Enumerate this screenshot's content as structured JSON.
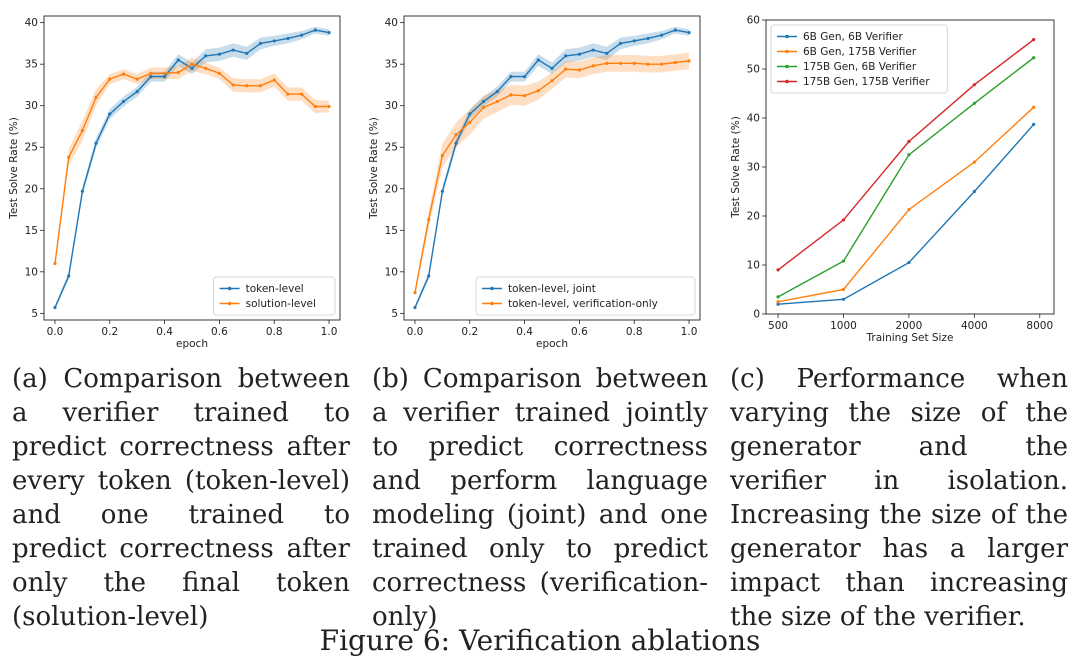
{
  "figure": {
    "caption": "Figure 6: Verification ablations",
    "panels": [
      {
        "caption": "(a) Comparison between a verifier trained to predict correctness after every token (token-level) and one trained to predict correctness after only the final token (solution-level)"
      },
      {
        "caption": "(b) Comparison between a verifier trained jointly to predict correctness and perform language modeling (joint) and one trained only to predict correctness (verification-only)"
      },
      {
        "caption": "(c) Performance when varying the size of the generator and the verifier in isolation. Increasing the size of the generator has a larger impact than increasing the size of the verifier."
      }
    ]
  },
  "colors": {
    "blue": "#1f77b4",
    "orange": "#ff7f0e",
    "green": "#2ca02c",
    "red": "#d62728"
  },
  "chart_data": [
    {
      "type": "line",
      "xlabel": "epoch",
      "ylabel": "Test Solve Rate (%)",
      "xlim": [
        -0.04,
        1.04
      ],
      "ylim": [
        4.2,
        40.8
      ],
      "xticks": [
        0.0,
        0.2,
        0.4,
        0.6,
        0.8,
        1.0
      ],
      "xtick_labels": [
        "0.0",
        "0.2",
        "0.4",
        "0.6",
        "0.8",
        "1.0"
      ],
      "yticks": [
        5,
        10,
        15,
        20,
        25,
        30,
        35,
        40
      ],
      "ytick_labels": [
        "5",
        "10",
        "15",
        "20",
        "25",
        "30",
        "35",
        "40"
      ],
      "legend_position": "lower-right",
      "x": [
        0.0,
        0.05,
        0.1,
        0.15,
        0.2,
        0.25,
        0.3,
        0.35,
        0.4,
        0.45,
        0.5,
        0.55,
        0.6,
        0.65,
        0.7,
        0.75,
        0.8,
        0.85,
        0.9,
        0.95,
        1.0
      ],
      "series": [
        {
          "name": "token-level",
          "color": "blue",
          "values": [
            5.7,
            9.5,
            19.7,
            25.5,
            29.0,
            30.5,
            31.7,
            33.5,
            33.5,
            35.5,
            34.5,
            36.0,
            36.2,
            36.7,
            36.3,
            37.5,
            37.8,
            38.1,
            38.5,
            39.1,
            38.8
          ],
          "band": [
            0.3,
            0.4,
            0.5,
            0.6,
            0.6,
            0.6,
            0.6,
            0.6,
            0.6,
            0.7,
            0.7,
            0.8,
            0.8,
            0.8,
            0.8,
            0.7,
            0.6,
            0.6,
            0.5,
            0.4,
            0.4
          ]
        },
        {
          "name": "solution-level",
          "color": "orange",
          "values": [
            11.0,
            23.8,
            27.0,
            31.0,
            33.2,
            33.8,
            33.2,
            33.9,
            33.9,
            34.0,
            35.0,
            34.5,
            33.9,
            32.5,
            32.4,
            32.4,
            33.1,
            31.4,
            31.4,
            29.9,
            29.9
          ],
          "band": [
            0.4,
            1.0,
            1.2,
            1.0,
            0.6,
            0.6,
            0.6,
            0.7,
            0.7,
            0.8,
            0.8,
            0.7,
            0.7,
            0.8,
            0.8,
            0.8,
            0.8,
            0.8,
            0.8,
            0.8,
            0.7
          ]
        }
      ]
    },
    {
      "type": "line",
      "xlabel": "epoch",
      "ylabel": "Test Solve Rate (%)",
      "xlim": [
        -0.04,
        1.04
      ],
      "ylim": [
        4.2,
        40.8
      ],
      "xticks": [
        0.0,
        0.2,
        0.4,
        0.6,
        0.8,
        1.0
      ],
      "xtick_labels": [
        "0.0",
        "0.2",
        "0.4",
        "0.6",
        "0.8",
        "1.0"
      ],
      "yticks": [
        5,
        10,
        15,
        20,
        25,
        30,
        35,
        40
      ],
      "ytick_labels": [
        "5",
        "10",
        "15",
        "20",
        "25",
        "30",
        "35",
        "40"
      ],
      "legend_position": "lower-right",
      "x": [
        0.0,
        0.05,
        0.1,
        0.15,
        0.2,
        0.25,
        0.3,
        0.35,
        0.4,
        0.45,
        0.5,
        0.55,
        0.6,
        0.65,
        0.7,
        0.75,
        0.8,
        0.85,
        0.9,
        0.95,
        1.0
      ],
      "series": [
        {
          "name": "token-level, joint",
          "color": "blue",
          "values": [
            5.7,
            9.5,
            19.7,
            25.5,
            29.0,
            30.5,
            31.7,
            33.5,
            33.5,
            35.5,
            34.5,
            36.0,
            36.2,
            36.7,
            36.3,
            37.5,
            37.8,
            38.1,
            38.5,
            39.1,
            38.8
          ],
          "band": [
            0.3,
            0.4,
            0.5,
            0.6,
            0.6,
            0.6,
            0.6,
            0.6,
            0.6,
            0.7,
            0.7,
            0.8,
            0.8,
            0.8,
            0.8,
            0.7,
            0.6,
            0.6,
            0.5,
            0.4,
            0.4
          ]
        },
        {
          "name": "token-level, verification-only",
          "color": "orange",
          "values": [
            7.5,
            16.3,
            24.0,
            26.5,
            28.0,
            29.8,
            30.5,
            31.3,
            31.2,
            31.8,
            33.0,
            34.4,
            34.3,
            34.8,
            35.1,
            35.1,
            35.1,
            35.0,
            35.0,
            35.2,
            35.4
          ],
          "band": [
            0.4,
            1.0,
            1.4,
            1.5,
            1.5,
            1.4,
            1.3,
            1.2,
            1.2,
            1.1,
            1.0,
            1.0,
            1.0,
            1.0,
            1.0,
            1.0,
            1.0,
            1.0,
            1.0,
            1.0,
            1.0
          ]
        }
      ]
    },
    {
      "type": "line",
      "xlabel": "Training Set Size",
      "ylabel": "Test Solve Rate (%)",
      "xscale": "log",
      "xlim": [
        440,
        9300
      ],
      "ylim": [
        0,
        60
      ],
      "xticks": [
        500,
        1000,
        2000,
        4000,
        8000
      ],
      "xtick_labels": [
        "500",
        "1000",
        "2000",
        "4000",
        "8000"
      ],
      "yticks": [
        0,
        10,
        20,
        30,
        40,
        50,
        60
      ],
      "ytick_labels": [
        "0",
        "10",
        "20",
        "30",
        "40",
        "50",
        "60"
      ],
      "legend_position": "upper-left",
      "x": [
        500,
        1000,
        2000,
        4000,
        7500
      ],
      "series": [
        {
          "name": "6B Gen, 6B Verifier",
          "color": "blue",
          "values": [
            2.0,
            3.0,
            10.5,
            25.0,
            38.7
          ]
        },
        {
          "name": "6B Gen, 175B Verifier",
          "color": "orange",
          "values": [
            2.5,
            5.0,
            21.3,
            31.0,
            42.2
          ]
        },
        {
          "name": "175B Gen, 6B Verifier",
          "color": "green",
          "values": [
            3.5,
            10.8,
            32.5,
            43.0,
            52.3
          ]
        },
        {
          "name": "175B Gen, 175B Verifier",
          "color": "red",
          "values": [
            9.0,
            19.2,
            35.2,
            46.8,
            56.0
          ]
        }
      ]
    }
  ]
}
